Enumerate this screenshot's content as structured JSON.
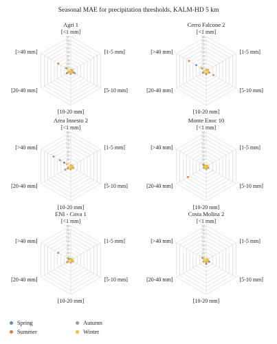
{
  "title": "Seasonal MAE for precipitation thresholds, KALM-HD 5 km",
  "colors": {
    "Spring": "#4e8fd0",
    "Summer": "#e07b39",
    "Autumn": "#9a9a9a",
    "Winter": "#f2c11d",
    "grid": "#d6d6d6"
  },
  "legend": [
    "Spring",
    "Autumn",
    "Summer",
    "Winter"
  ],
  "chart_data": [
    {
      "type": "radar",
      "title": "Agri 1",
      "axes": [
        "[<1 mm]",
        "[1-5 mm]",
        "[5-10 mm]",
        "[10-20 mm]",
        "[20-40 mm]",
        "[>40 mm]"
      ],
      "ticks": [
        0,
        10,
        20,
        30,
        40,
        50,
        60,
        70,
        80,
        90
      ],
      "rmax": 90,
      "series": [
        {
          "name": "Spring",
          "values": [
            2,
            3,
            8,
            5,
            6,
            14
          ]
        },
        {
          "name": "Summer",
          "values": [
            2,
            4,
            6,
            6,
            12,
            38
          ]
        },
        {
          "name": "Autumn",
          "values": [
            3,
            3,
            12,
            8,
            7,
            12
          ]
        },
        {
          "name": "Winter",
          "values": [
            2,
            2,
            4,
            4,
            5,
            10
          ]
        }
      ]
    },
    {
      "type": "radar",
      "title": "Cerro Falcone 2",
      "axes": [
        "[<1 mm]",
        "[1-5 mm]",
        "[5-10 mm]",
        "[10-20 mm]",
        "[20-40 mm]",
        "[>40 mm]"
      ],
      "ticks": [
        0,
        10,
        20,
        30,
        40,
        50,
        60,
        70,
        80,
        90
      ],
      "rmax": 90,
      "series": [
        {
          "name": "Spring",
          "values": [
            2,
            4,
            9,
            6,
            10,
            30
          ]
        },
        {
          "name": "Summer",
          "values": [
            3,
            5,
            8,
            8,
            9,
            52
          ]
        },
        {
          "name": "Autumn",
          "values": [
            2,
            4,
            22,
            9,
            8,
            12
          ]
        },
        {
          "name": "Winter",
          "values": [
            2,
            3,
            6,
            5,
            6,
            15
          ]
        }
      ]
    },
    {
      "type": "radar",
      "title": "Area Innesto 2",
      "axes": [
        "[<1 mm]",
        "[1-5 mm]",
        "[5-10 mm]",
        "[10-20 mm]",
        "[20-40 mm]",
        "[>40 mm]"
      ],
      "ticks": [
        0,
        10,
        20,
        30,
        40,
        50,
        60,
        70,
        80,
        90
      ],
      "rmax": 90,
      "series": [
        {
          "name": "Spring",
          "values": [
            2,
            3,
            6,
            5,
            8,
            20
          ]
        },
        {
          "name": "Summer",
          "values": [
            3,
            4,
            7,
            6,
            9,
            33
          ]
        },
        {
          "name": "Autumn",
          "values": [
            2,
            4,
            5,
            7,
            16,
            52
          ]
        },
        {
          "name": "Winter",
          "values": [
            2,
            3,
            5,
            4,
            6,
            12
          ]
        }
      ]
    },
    {
      "type": "radar",
      "title": "Monte Enoc 10",
      "axes": [
        "[<1 mm]",
        "[1-5 mm]",
        "[5-10 mm]",
        "[10-20 mm]",
        "[20-40 mm]",
        "[>40 mm]"
      ],
      "ticks": [
        0,
        10,
        20,
        30,
        40,
        50,
        60,
        70,
        80,
        90
      ],
      "rmax": 90,
      "series": [
        {
          "name": "Spring",
          "values": [
            2,
            3,
            5,
            5,
            6,
            6
          ]
        },
        {
          "name": "Summer",
          "values": [
            2,
            3,
            6,
            6,
            55,
            8
          ]
        },
        {
          "name": "Autumn",
          "values": [
            2,
            3,
            5,
            5,
            7,
            5
          ]
        },
        {
          "name": "Winter",
          "values": [
            2,
            2,
            4,
            4,
            5,
            4
          ]
        }
      ]
    },
    {
      "type": "radar",
      "title": "ENI - Cova 1",
      "axes": [
        "[<1 mm]",
        "[1-5 mm]",
        "[5-10 mm]",
        "[10-20 mm]",
        "[20-40 mm]",
        "[>40 mm]"
      ],
      "ticks": [
        0,
        10,
        20,
        30,
        40,
        50,
        60,
        70,
        80,
        90
      ],
      "rmax": 90,
      "series": [
        {
          "name": "Spring",
          "values": [
            2,
            3,
            5,
            5,
            10,
            6
          ]
        },
        {
          "name": "Summer",
          "values": [
            3,
            4,
            6,
            5,
            11,
            38
          ]
        },
        {
          "name": "Autumn",
          "values": [
            2,
            3,
            6,
            6,
            8,
            8
          ]
        },
        {
          "name": "Winter",
          "values": [
            2,
            4,
            5,
            4,
            7,
            10
          ]
        }
      ]
    },
    {
      "type": "radar",
      "title": "Costa Molina 2",
      "axes": [
        "[<1 mm]",
        "[1-5 mm]",
        "[5-10 mm]",
        "[10-20 mm]",
        "[20-40 mm]",
        "[>40 mm]"
      ],
      "ticks": [
        0,
        10,
        20,
        30,
        40,
        50,
        60,
        70,
        80,
        90
      ],
      "rmax": 90,
      "series": [
        {
          "name": "Spring",
          "values": [
            2,
            3,
            9,
            6,
            6,
            8
          ]
        },
        {
          "name": "Summer",
          "values": [
            2,
            4,
            6,
            10,
            7,
            10
          ]
        },
        {
          "name": "Autumn",
          "values": [
            2,
            3,
            5,
            5,
            8,
            12
          ]
        },
        {
          "name": "Winter",
          "values": [
            2,
            3,
            4,
            4,
            6,
            8
          ]
        }
      ]
    }
  ]
}
